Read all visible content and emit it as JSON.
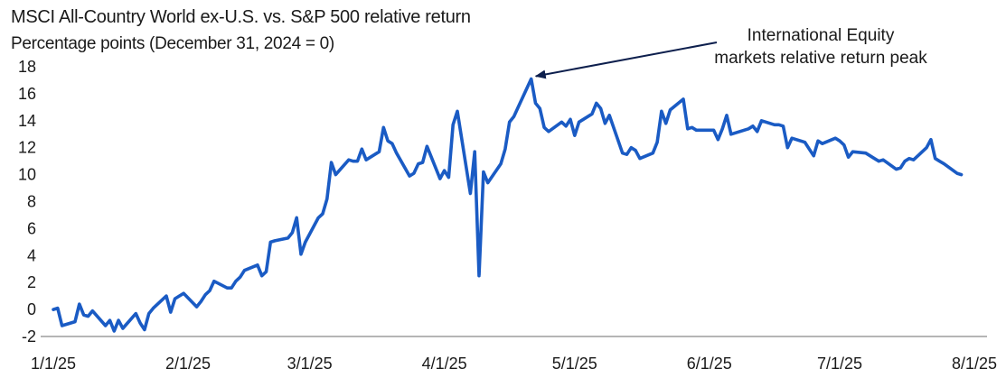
{
  "chart_data": {
    "type": "line",
    "title": "MSCI All-Country World ex-U.S. vs. S&P 500 relative return",
    "subtitle": "Percentage points (December 31, 2024 = 0)",
    "xlabel": "",
    "ylabel": "",
    "ylim": [
      -2,
      18
    ],
    "yticks": [
      -2,
      0,
      2,
      4,
      6,
      8,
      10,
      12,
      14,
      16,
      18
    ],
    "x_tick_labels": [
      "1/1/25",
      "2/1/25",
      "3/1/25",
      "4/1/25",
      "5/1/25",
      "6/1/25",
      "7/1/25",
      "8/1/25"
    ],
    "x_tick_days": [
      0,
      31,
      59,
      90,
      120,
      151,
      181,
      212
    ],
    "grid": false,
    "line_color": "#1a5bc4",
    "annotation": {
      "lines": [
        "International Equity",
        "markets relative return peak"
      ],
      "target_day": 110,
      "target_value": 17.1
    },
    "series": [
      {
        "days": [
          0,
          1,
          2,
          5,
          6,
          7,
          8,
          9,
          12,
          13,
          14,
          15,
          16,
          19,
          20,
          21,
          22,
          23,
          26,
          27,
          28,
          29,
          30,
          33,
          34,
          35,
          36,
          37,
          40,
          41,
          42,
          43,
          44,
          47,
          48,
          49,
          50,
          51,
          54,
          55,
          56,
          57,
          58,
          61,
          62,
          63,
          64,
          65,
          68,
          69,
          70,
          71,
          72,
          75,
          76,
          77,
          78,
          79,
          82,
          83,
          84,
          85,
          86,
          89,
          90,
          91,
          92,
          93,
          96,
          97,
          98,
          99,
          100,
          103,
          104,
          105,
          106,
          107,
          110,
          111,
          112,
          113,
          114,
          117,
          118,
          119,
          120,
          121,
          124,
          125,
          126,
          127,
          128,
          131,
          132,
          133,
          134,
          135,
          138,
          139,
          140,
          141,
          142,
          145,
          146,
          147,
          148,
          149,
          152,
          153,
          154,
          155,
          156,
          159,
          160,
          161,
          162,
          163,
          166,
          167,
          168,
          169,
          170,
          173,
          174,
          175,
          176,
          177,
          180,
          181,
          182,
          183,
          184,
          187,
          188,
          189,
          190,
          191,
          194,
          195,
          196,
          197,
          198,
          201,
          202,
          203,
          204,
          205,
          208,
          209
        ],
        "values": [
          0,
          0.1,
          -1.2,
          -0.9,
          0.4,
          -0.4,
          -0.5,
          -0.1,
          -1.2,
          -0.8,
          -1.6,
          -0.8,
          -1.4,
          -0.3,
          -1.0,
          -1.5,
          -0.3,
          0.1,
          1.0,
          -0.2,
          0.8,
          1.0,
          1.2,
          0.2,
          0.6,
          1.1,
          1.4,
          2.1,
          1.6,
          1.6,
          2.1,
          2.4,
          2.9,
          3.3,
          2.5,
          2.8,
          5.0,
          5.1,
          5.3,
          5.7,
          6.8,
          4.1,
          5.0,
          6.8,
          7.1,
          8.2,
          10.9,
          10.0,
          11.1,
          11.0,
          11.0,
          11.9,
          11.1,
          11.7,
          13.5,
          12.5,
          12.3,
          11.6,
          9.9,
          10.1,
          10.8,
          10.9,
          12.1,
          9.7,
          10.3,
          9.8,
          13.7,
          14.7,
          8.6,
          11.7,
          2.5,
          10.2,
          9.4,
          10.8,
          11.9,
          13.9,
          14.3,
          15.0,
          17.1,
          15.3,
          14.9,
          13.5,
          13.2,
          13.9,
          13.6,
          14.1,
          12.9,
          13.9,
          14.5,
          15.3,
          14.9,
          13.8,
          14.4,
          11.6,
          11.5,
          12.0,
          11.8,
          11.2,
          11.6,
          12.4,
          14.7,
          13.8,
          14.8,
          15.6,
          13.4,
          13.5,
          13.3,
          13.3,
          13.3,
          12.6,
          13.4,
          14.4,
          13.0,
          13.3,
          13.4,
          13.6,
          13.2,
          14.0,
          13.7,
          13.7,
          13.6,
          12.0,
          12.7,
          12.4,
          11.9,
          11.4,
          12.5,
          12.3,
          12.7,
          12.5,
          12.2,
          11.3,
          11.7,
          11.6,
          11.4,
          11.2,
          11.0,
          11.1,
          10.4,
          10.5,
          11.0,
          11.2,
          11.1,
          12.0,
          12.6,
          11.2,
          11.0,
          10.8,
          10.1,
          10.0
        ]
      }
    ]
  }
}
